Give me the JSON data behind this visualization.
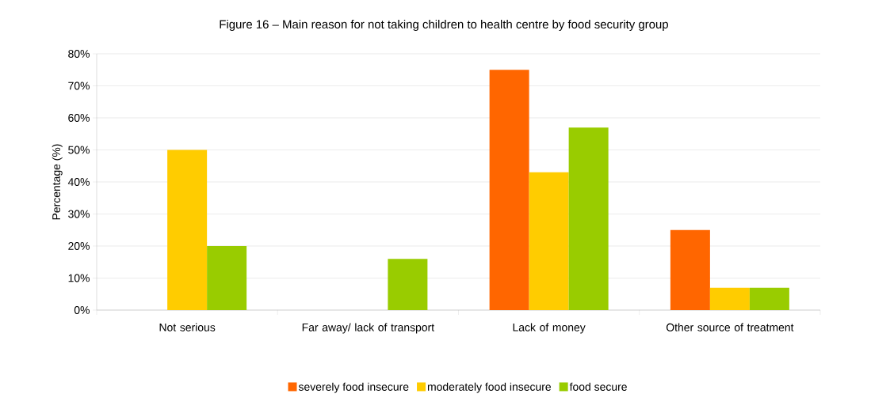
{
  "chart_data": {
    "type": "bar",
    "title": "Figure 16 – Main reason for not taking children to health centre by food security group",
    "ylabel": "Percentage (%)",
    "categories": [
      "Not serious",
      "Far away/ lack of transport",
      "Lack of money",
      "Other source of treatment"
    ],
    "series": [
      {
        "name": "severely food insecure",
        "color": "#ff6600",
        "values": [
          0,
          0,
          75,
          25
        ]
      },
      {
        "name": "moderately food insecure",
        "color": "#ffcc00",
        "values": [
          50,
          0,
          43,
          7
        ]
      },
      {
        "name": "food secure",
        "color": "#99cc00",
        "values": [
          20,
          16,
          57,
          7
        ]
      }
    ],
    "ylim": [
      0,
      80
    ],
    "yticks": [
      {
        "value": 0,
        "label": "0%"
      },
      {
        "value": 10,
        "label": "10%"
      },
      {
        "value": 20,
        "label": "20%"
      },
      {
        "value": 30,
        "label": "30%"
      },
      {
        "value": 40,
        "label": "40%"
      },
      {
        "value": 50,
        "label": "50%"
      },
      {
        "value": 60,
        "label": "60%"
      },
      {
        "value": 70,
        "label": "70%"
      },
      {
        "value": 80,
        "label": "80%"
      }
    ],
    "grid": "y",
    "legend": "bottom"
  }
}
